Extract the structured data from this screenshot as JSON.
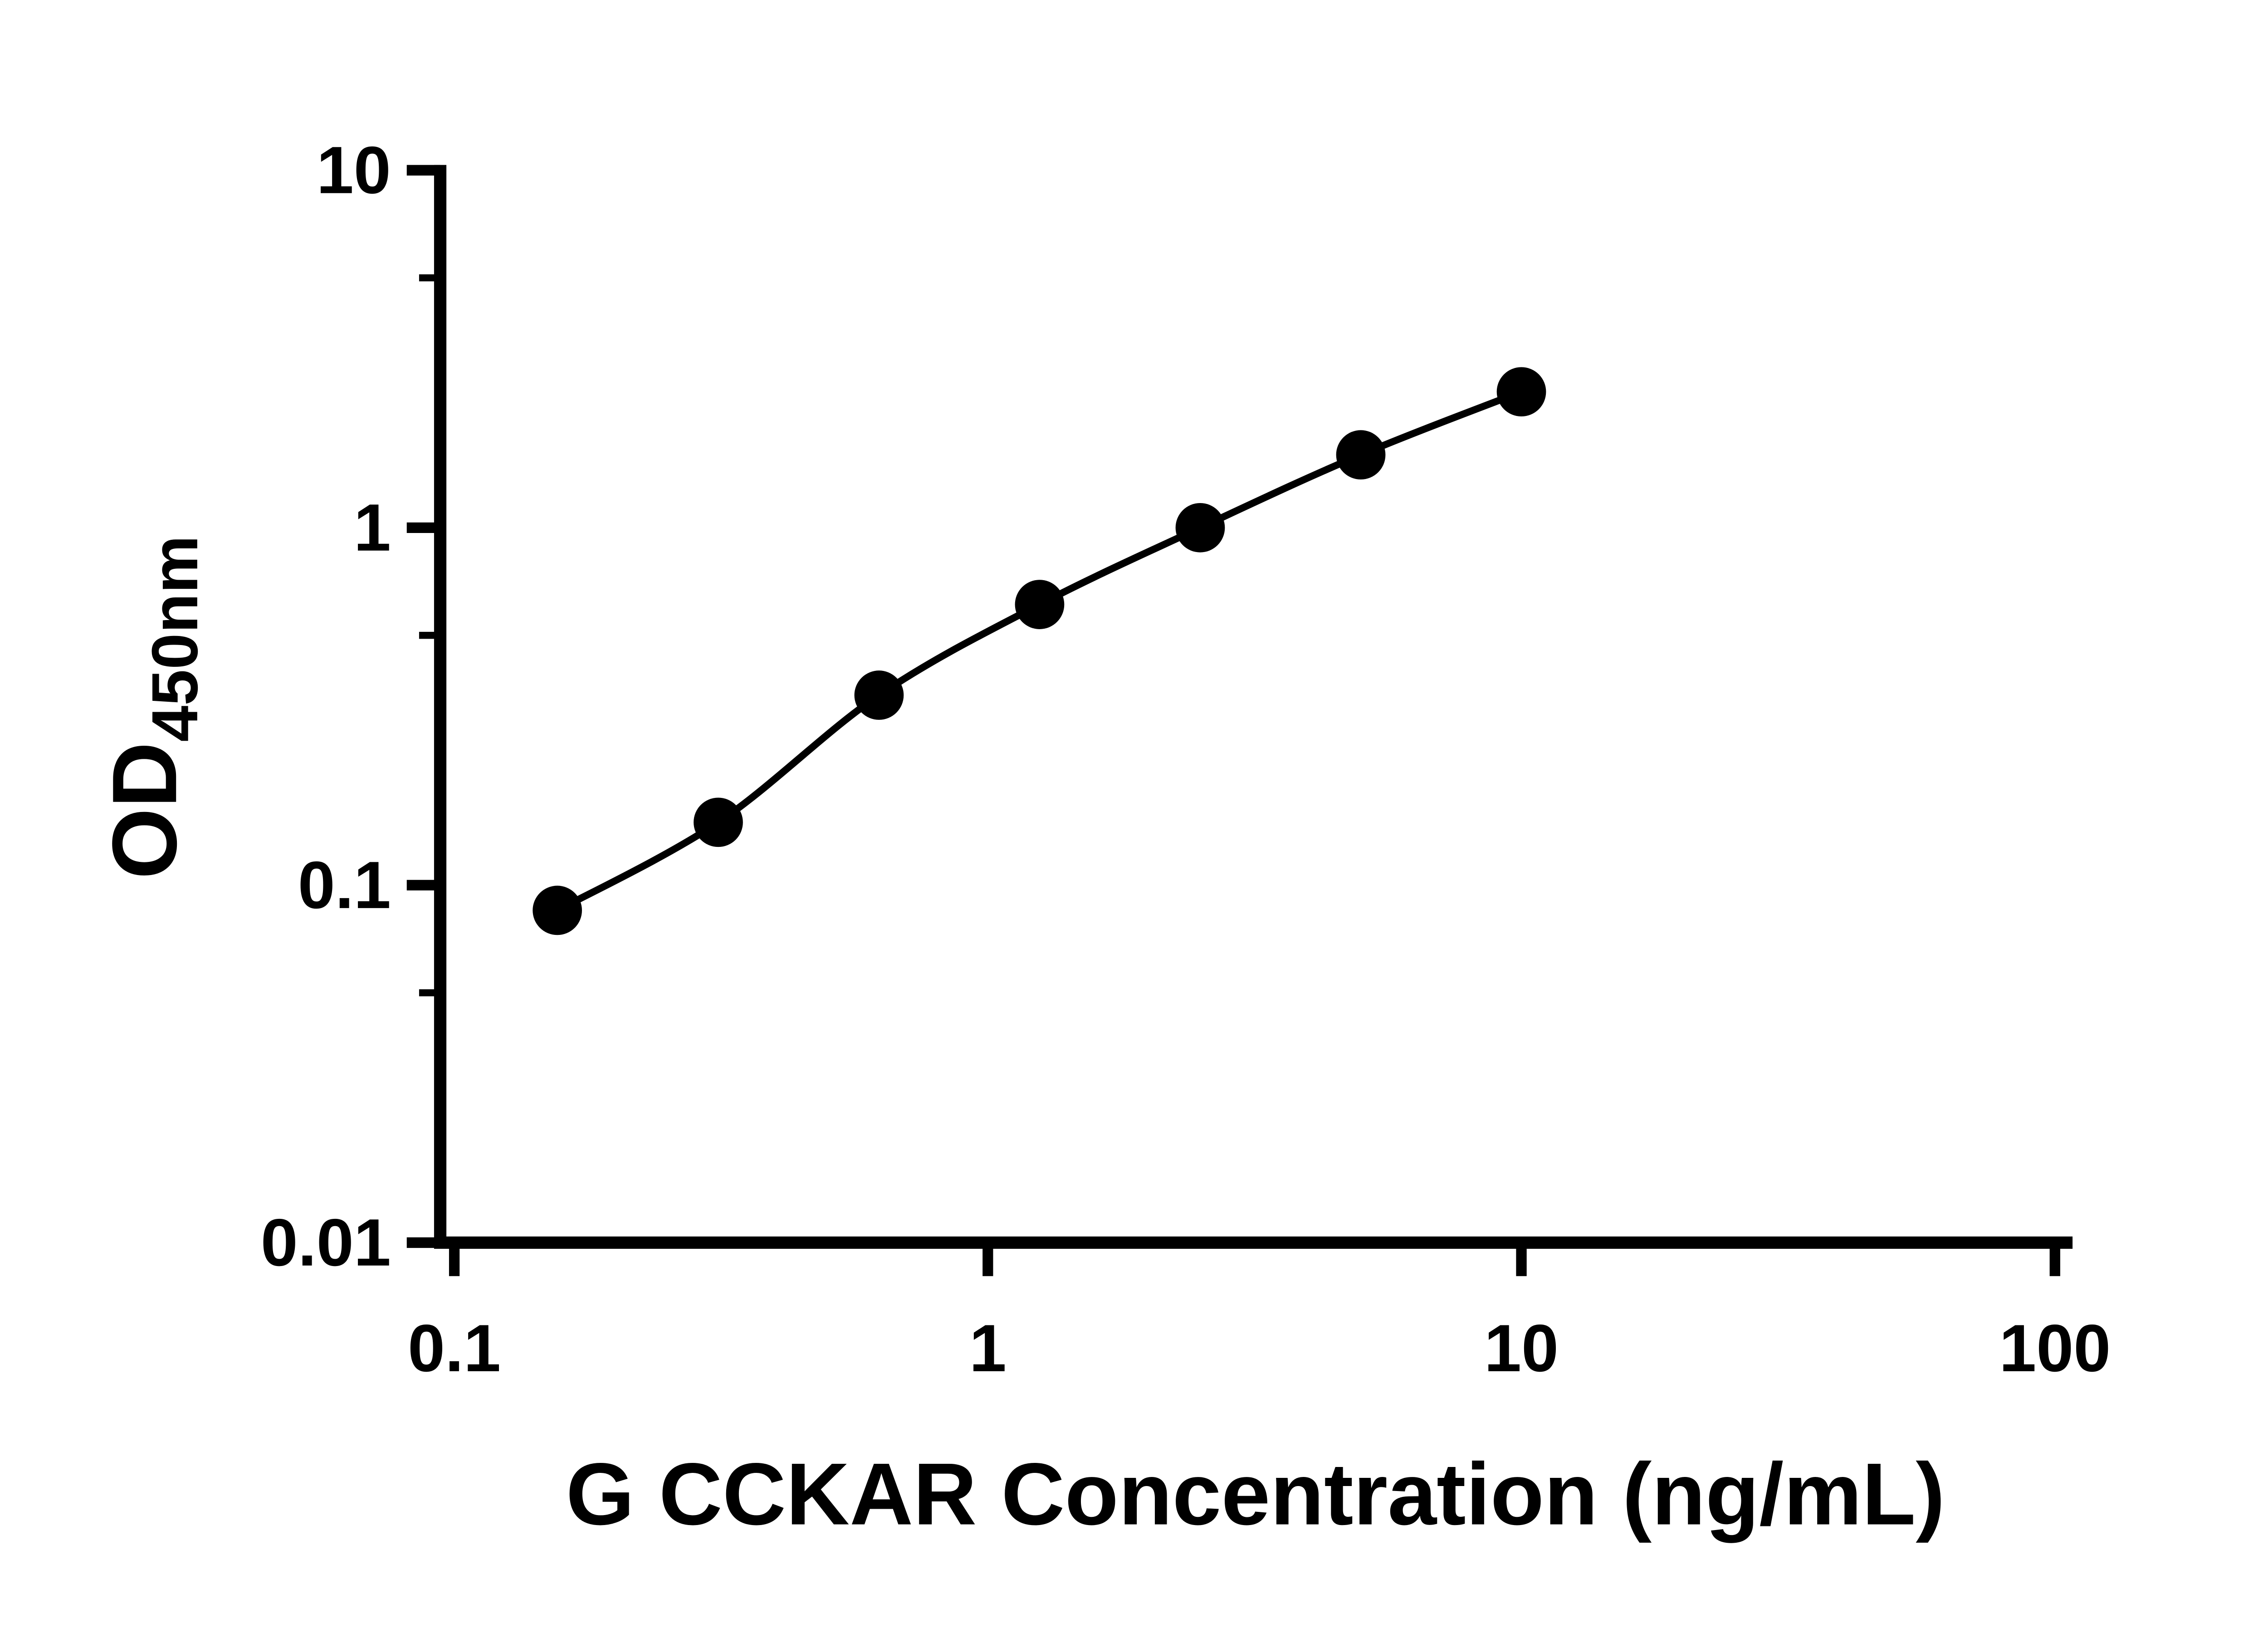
{
  "figure": {
    "background": "#ffffff",
    "text_color": "#000000"
  },
  "chart_data": {
    "type": "scatter",
    "subtype": "elisa-standard-curve",
    "title": "",
    "xlabel": "G CCKAR Concentration (ng/mL)",
    "ylabel_main": "OD",
    "ylabel_sub": "450nm",
    "x_scale": "log",
    "y_scale": "log",
    "xlim": [
      0.1,
      100
    ],
    "ylim": [
      0.01,
      10
    ],
    "grid": false,
    "legend": false,
    "x_ticks": [
      {
        "value": 0.1,
        "label": "0.1"
      },
      {
        "value": 1,
        "label": "1"
      },
      {
        "value": 10,
        "label": "10"
      },
      {
        "value": 100,
        "label": "100"
      }
    ],
    "y_ticks": [
      {
        "value": 10,
        "label": "10"
      },
      {
        "value": 1,
        "label": "1"
      },
      {
        "value": 0.1,
        "label": "0.1"
      },
      {
        "value": 0.01,
        "label": "0.01"
      }
    ],
    "y_minor_tick_values": [
      5,
      0.5,
      0.05
    ],
    "curve_style": "smooth",
    "marker": "circle",
    "marker_color": "#000000",
    "line_color": "#000000",
    "axis_color": "#000000",
    "points": [
      {
        "x": 0.156,
        "y": 0.085
      },
      {
        "x": 0.3125,
        "y": 0.15
      },
      {
        "x": 0.625,
        "y": 0.34
      },
      {
        "x": 1.25,
        "y": 0.61
      },
      {
        "x": 2.5,
        "y": 1.0
      },
      {
        "x": 5,
        "y": 1.6
      },
      {
        "x": 10,
        "y": 2.4
      }
    ]
  }
}
